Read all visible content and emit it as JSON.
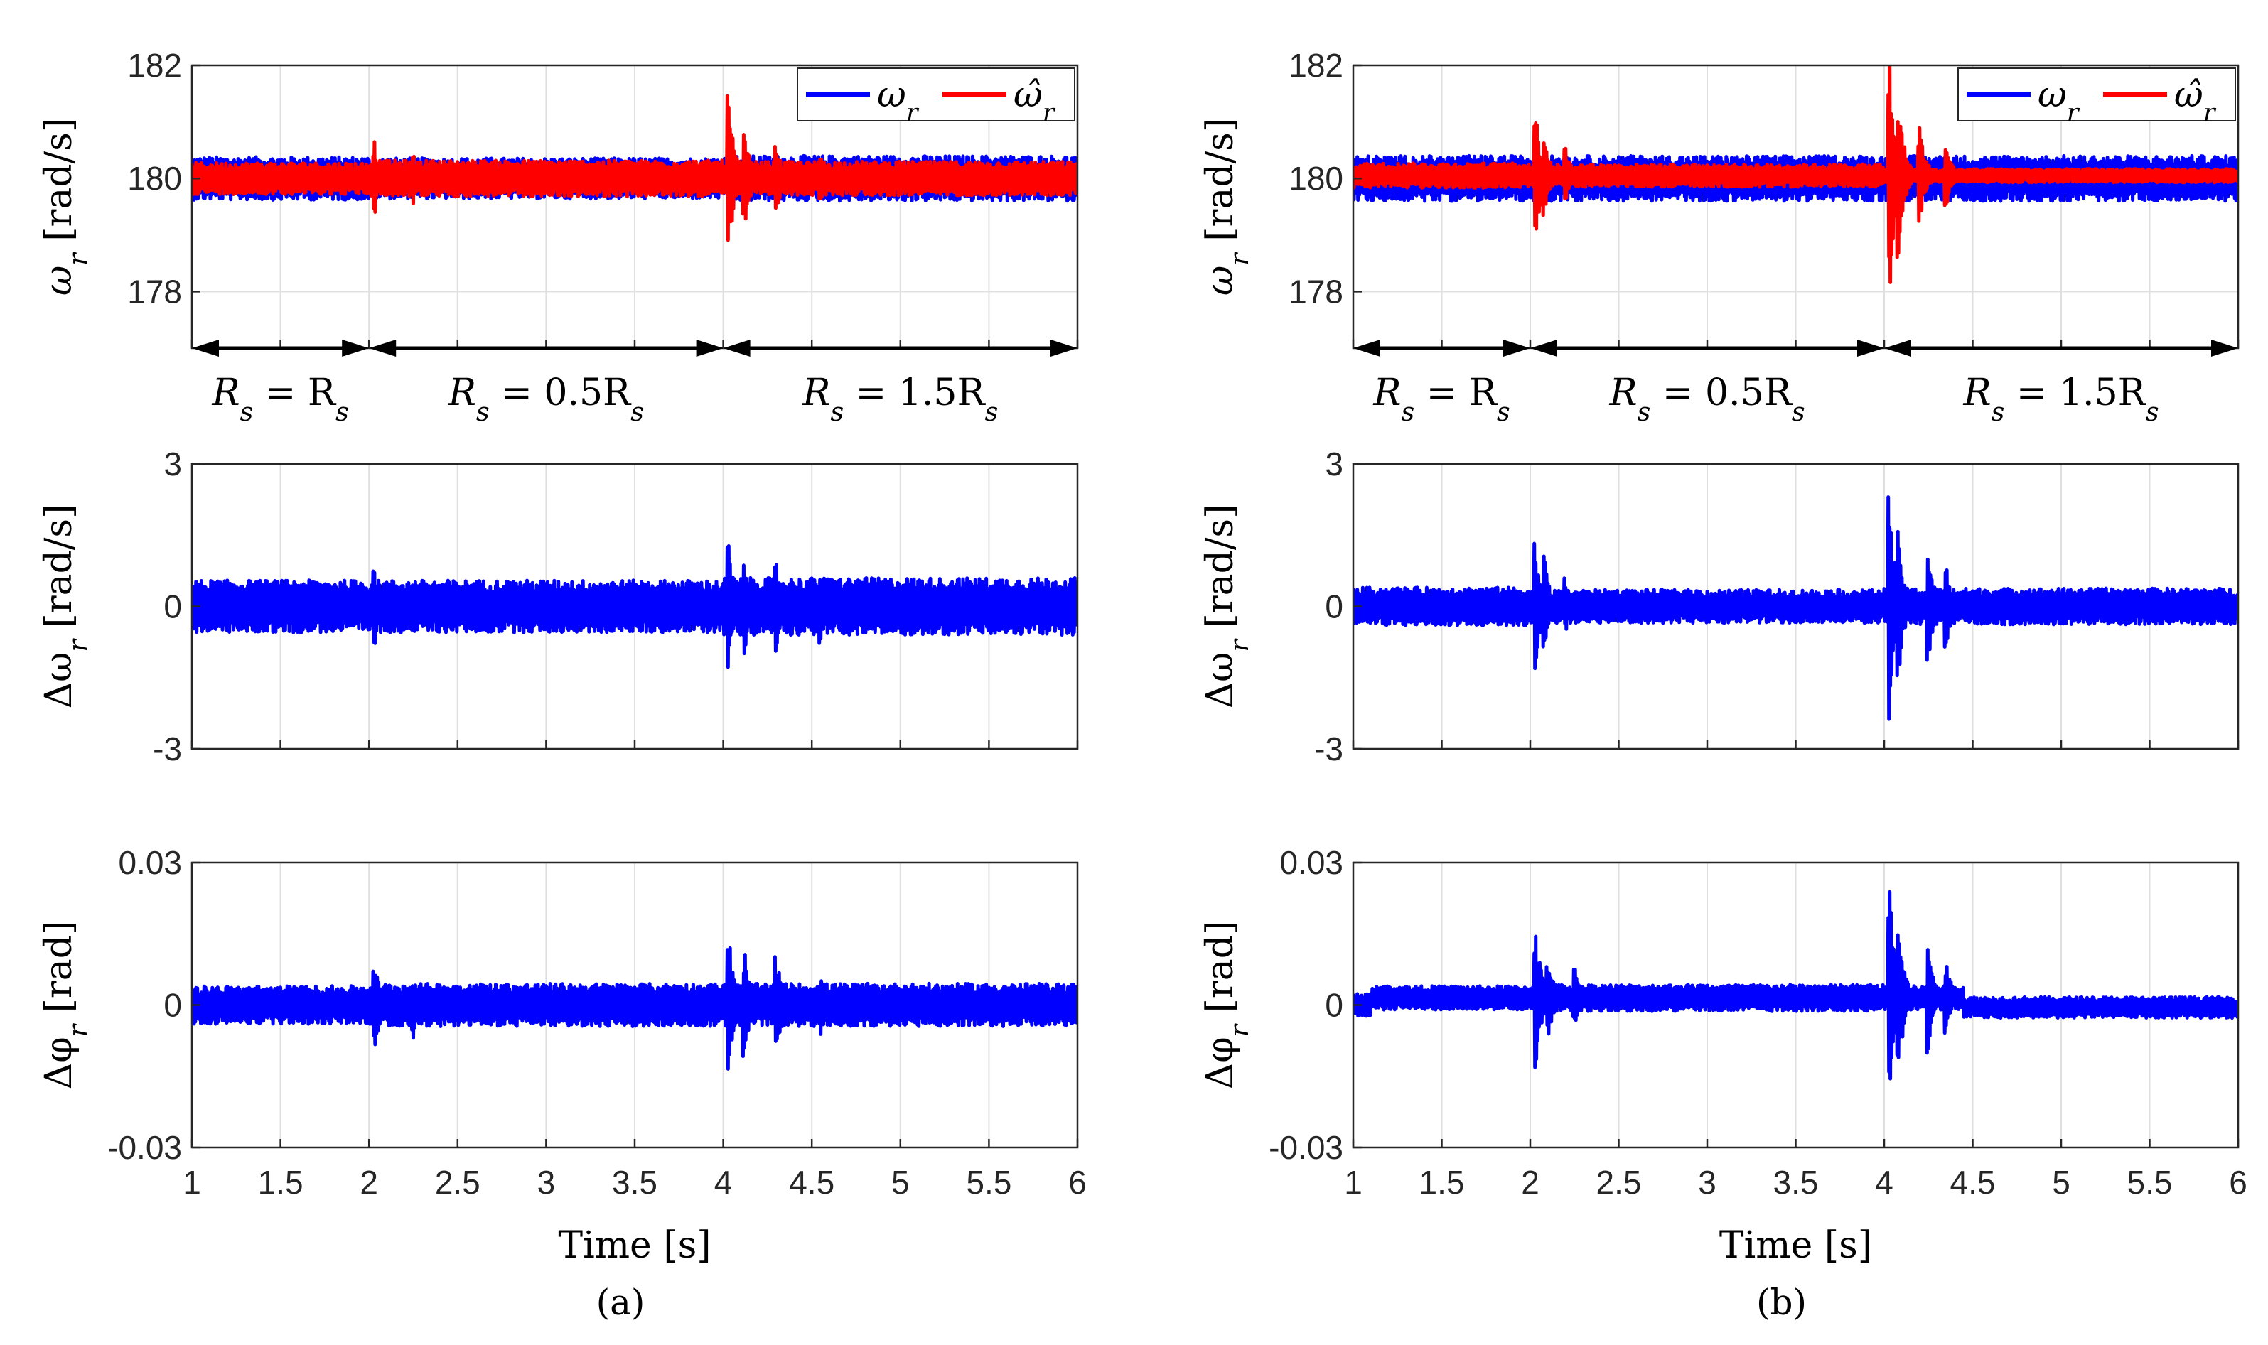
{
  "colors": {
    "measured": "#0000ff",
    "estimated": "#ff0000",
    "axis": "#262626",
    "grid": "#dfdfdf"
  },
  "chart_data": [
    {
      "panel": "a",
      "caption": "(a)",
      "xlabel": "Time [s]",
      "x_ticks": [
        "1",
        "1.5",
        "2",
        "2.5",
        "3",
        "3.5",
        "4",
        "4.5",
        "5",
        "5.5",
        "6"
      ],
      "xlim": [
        1,
        6
      ],
      "subplots": [
        {
          "id": "speed",
          "type": "line",
          "ylabel": "ω_r [rad/s]",
          "ylim": [
            177,
            182
          ],
          "y_ticks": [
            {
              "v": 182,
              "label": "182"
            },
            {
              "v": 180,
              "label": "180"
            },
            {
              "v": 178,
              "label": "178"
            }
          ],
          "legend": {
            "position": "top-right",
            "entries": [
              "ω_r",
              "ω̂_r"
            ]
          },
          "series": [
            {
              "name": "ω_r",
              "color": "#0000ff",
              "center": 180,
              "segments": [
                [
                  1,
                  2,
                  0.38
                ],
                [
                  2,
                  4,
                  0.36
                ],
                [
                  4,
                  6,
                  0.4
                ]
              ]
            },
            {
              "name": "ω̂_r",
              "color": "#ff0000",
              "center": 180,
              "segments": [
                [
                  1,
                  2,
                  0.28
                ],
                [
                  2,
                  4,
                  0.32
                ],
                [
                  4,
                  6,
                  0.3
                ]
              ],
              "spikes": [
                [
                  2.03,
                  0.7
                ],
                [
                  2.25,
                  0.45
                ],
                [
                  4.03,
                  1.5
                ],
                [
                  4.12,
                  0.9
                ],
                [
                  4.3,
                  0.65
                ],
                [
                  4.55,
                  0.45
                ]
              ]
            }
          ],
          "regions": [
            {
              "from": 1,
              "to": 2,
              "label": "R_s = R_s"
            },
            {
              "from": 2,
              "to": 4,
              "label": "R_s = 0.5R_s"
            },
            {
              "from": 4,
              "to": 6,
              "label": "R_s = 1.5R_s"
            }
          ]
        },
        {
          "id": "speed-error",
          "type": "line",
          "ylabel": "Δω_r [rad/s]",
          "ylim": [
            -3,
            3
          ],
          "y_ticks": [
            {
              "v": 3,
              "label": "3"
            },
            {
              "v": 0,
              "label": "0"
            },
            {
              "v": -3,
              "label": "-3"
            }
          ],
          "series": [
            {
              "name": "Δω_r",
              "color": "#0000ff",
              "center": 0,
              "segments": [
                [
                  1,
                  2,
                  0.55
                ],
                [
                  2,
                  4,
                  0.55
                ],
                [
                  4,
                  6,
                  0.6
                ]
              ],
              "spikes": [
                [
                  2.03,
                  0.95
                ],
                [
                  4.03,
                  1.4
                ],
                [
                  4.12,
                  1.0
                ],
                [
                  4.3,
                  0.95
                ],
                [
                  4.55,
                  0.8
                ]
              ]
            }
          ]
        },
        {
          "id": "angle-error",
          "type": "line",
          "ylabel": "Δφ_r [rad]",
          "ylim": [
            -0.03,
            0.03
          ],
          "y_ticks": [
            {
              "v": 0.03,
              "label": "0.03"
            },
            {
              "v": 0,
              "label": "0"
            },
            {
              "v": -0.03,
              "label": "-0.03"
            }
          ],
          "series": [
            {
              "name": "Δφ_r",
              "color": "#0000ff",
              "center": 0,
              "segments": [
                [
                  1,
                  2,
                  0.004
                ],
                [
                  2,
                  4,
                  0.0045
                ],
                [
                  4,
                  6,
                  0.0045
                ]
              ],
              "spikes": [
                [
                  2.03,
                  0.01
                ],
                [
                  2.25,
                  0.007
                ],
                [
                  4.03,
                  0.016
                ],
                [
                  4.12,
                  0.012
                ],
                [
                  4.3,
                  0.011
                ],
                [
                  4.55,
                  0.007
                ]
              ]
            }
          ]
        }
      ]
    },
    {
      "panel": "b",
      "caption": "(b)",
      "xlabel": "Time [s]",
      "x_ticks": [
        "1",
        "1.5",
        "2",
        "2.5",
        "3",
        "3.5",
        "4",
        "4.5",
        "5",
        "5.5",
        "6"
      ],
      "xlim": [
        1,
        6
      ],
      "subplots": [
        {
          "id": "speed",
          "type": "line",
          "ylabel": "ω_r [rad/s]",
          "ylim": [
            177,
            182
          ],
          "y_ticks": [
            {
              "v": 182,
              "label": "182"
            },
            {
              "v": 180,
              "label": "180"
            },
            {
              "v": 178,
              "label": "178"
            }
          ],
          "legend": {
            "position": "top-right",
            "entries": [
              "ω_r",
              "ω̂_r"
            ]
          },
          "series": [
            {
              "name": "ω_r",
              "color": "#0000ff",
              "center": 180,
              "segments": [
                [
                  1,
                  2,
                  0.4
                ],
                [
                  2,
                  4,
                  0.4
                ],
                [
                  4,
                  6,
                  0.4
                ]
              ]
            },
            {
              "name": "ω̂_r",
              "color": "#ff0000",
              "center": 180.05,
              "segments": [
                [
                  1,
                  2,
                  0.22
                ],
                [
                  2,
                  4,
                  0.2
                ],
                [
                  4,
                  6,
                  0.12
                ]
              ],
              "spikes": [
                [
                  2.03,
                  1.2
                ],
                [
                  2.08,
                  0.8
                ],
                [
                  2.2,
                  0.5
                ],
                [
                  4.03,
                  2.2
                ],
                [
                  4.08,
                  1.5
                ],
                [
                  4.2,
                  0.9
                ],
                [
                  4.35,
                  0.6
                ]
              ]
            }
          ],
          "regions": [
            {
              "from": 1,
              "to": 2,
              "label": "R_s = R_s"
            },
            {
              "from": 2,
              "to": 4,
              "label": "R_s = 0.5R_s"
            },
            {
              "from": 4,
              "to": 6,
              "label": "R_s = 1.5R_s"
            }
          ]
        },
        {
          "id": "speed-error",
          "type": "line",
          "ylabel": "Δω_r [rad/s]",
          "ylim": [
            -3,
            3
          ],
          "y_ticks": [
            {
              "v": 3,
              "label": "3"
            },
            {
              "v": 0,
              "label": "0"
            },
            {
              "v": -3,
              "label": "-3"
            }
          ],
          "series": [
            {
              "name": "Δω_r",
              "color": "#0000ff",
              "center": 0,
              "segments": [
                [
                  1,
                  2,
                  0.4
                ],
                [
                  2,
                  4,
                  0.35
                ],
                [
                  4,
                  6,
                  0.38
                ]
              ],
              "spikes": [
                [
                  2.03,
                  1.4
                ],
                [
                  2.08,
                  1.1
                ],
                [
                  2.2,
                  0.6
                ],
                [
                  4.03,
                  2.4
                ],
                [
                  4.08,
                  1.6
                ],
                [
                  4.25,
                  1.2
                ],
                [
                  4.35,
                  0.9
                ]
              ]
            }
          ]
        },
        {
          "id": "angle-error",
          "type": "line",
          "ylabel": "Δφ_r [rad]",
          "ylim": [
            -0.03,
            0.03
          ],
          "y_ticks": [
            {
              "v": 0.03,
              "label": "0.03"
            },
            {
              "v": 0,
              "label": "0"
            },
            {
              "v": -0.03,
              "label": "-0.03"
            }
          ],
          "series": [
            {
              "name": "Δφ_r",
              "color": "#0000ff",
              "center": 0.0015,
              "segments": [
                [
                  1,
                  2,
                  0.0025
                ],
                [
                  2,
                  4,
                  0.0028
                ],
                [
                  4,
                  4.45,
                  0.0025
                ],
                [
                  4.45,
                  6,
                  0.0022
                ]
              ],
              "centers": [
                [
                  1,
                  1.1,
                  0.0
                ],
                [
                  4.45,
                  6,
                  -0.0005
                ]
              ],
              "spikes": [
                [
                  2.03,
                  0.016
                ],
                [
                  2.1,
                  0.009
                ],
                [
                  2.25,
                  0.007
                ],
                [
                  4.03,
                  0.027
                ],
                [
                  4.08,
                  0.018
                ],
                [
                  4.25,
                  0.012
                ],
                [
                  4.35,
                  0.008
                ]
              ]
            }
          ]
        }
      ]
    }
  ]
}
